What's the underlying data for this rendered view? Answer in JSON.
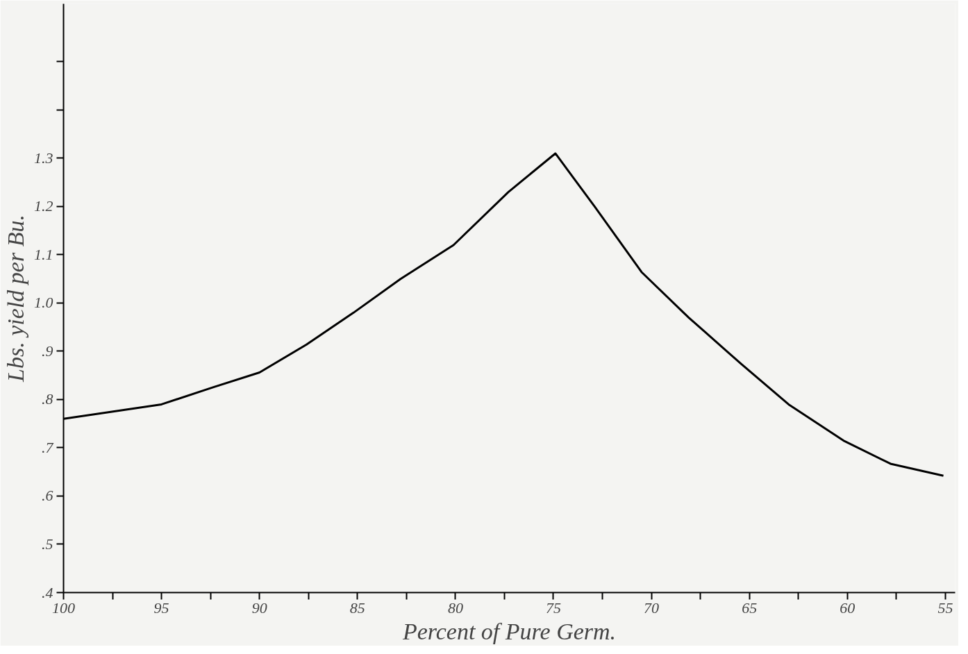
{
  "chart_data": {
    "type": "line",
    "xlabel": "Percent of Pure Germ.",
    "ylabel": "Lbs. yield per Bu.",
    "x": [
      100,
      95,
      92.4,
      90,
      87.6,
      85.2,
      82.8,
      80.1,
      77.3,
      74.9,
      72.9,
      70.5,
      68.1,
      65.4,
      63.0,
      60.2,
      57.8,
      55.1
    ],
    "series": [
      {
        "color": "#000000",
        "values": [
          0.76,
          0.79,
          0.825,
          0.856,
          0.914,
          0.98,
          1.05,
          1.12,
          1.23,
          1.31,
          1.2,
          1.064,
          0.97,
          0.873,
          0.79,
          0.715,
          0.667,
          0.642
        ]
      }
    ],
    "xlim": [
      100,
      54.5
    ],
    "ylim": [
      0.4,
      1.62
    ],
    "xticks": [
      {
        "value": 100,
        "label": "100"
      },
      {
        "value": 97.5,
        "label": null
      },
      {
        "value": 95,
        "label": "95"
      },
      {
        "value": 92.5,
        "label": null
      },
      {
        "value": 90,
        "label": "90"
      },
      {
        "value": 87.5,
        "label": null
      },
      {
        "value": 85,
        "label": "85"
      },
      {
        "value": 82.5,
        "label": null
      },
      {
        "value": 80,
        "label": "80"
      },
      {
        "value": 77.5,
        "label": null
      },
      {
        "value": 75,
        "label": "75"
      },
      {
        "value": 72.5,
        "label": null
      },
      {
        "value": 70,
        "label": "70"
      },
      {
        "value": 67.5,
        "label": null
      },
      {
        "value": 65,
        "label": "65"
      },
      {
        "value": 62.5,
        "label": null
      },
      {
        "value": 60,
        "label": "60"
      },
      {
        "value": 57.5,
        "label": null
      },
      {
        "value": 55,
        "label": "55"
      }
    ],
    "yticks": [
      {
        "value": 0.4,
        "label": ".4"
      },
      {
        "value": 0.5,
        "label": ".5"
      },
      {
        "value": 0.6,
        "label": ".6"
      },
      {
        "value": 0.7,
        "label": ".7"
      },
      {
        "value": 0.8,
        "label": ".8"
      },
      {
        "value": 0.9,
        "label": ".9"
      },
      {
        "value": 1.0,
        "label": "1.0"
      },
      {
        "value": 1.1,
        "label": "1.1"
      },
      {
        "value": 1.2,
        "label": "1.2"
      },
      {
        "value": 1.3,
        "label": "1.3"
      },
      {
        "value": 1.4,
        "label": null
      },
      {
        "value": 1.5,
        "label": null
      }
    ],
    "grid": false,
    "marker": "none",
    "line_style": "solid"
  }
}
